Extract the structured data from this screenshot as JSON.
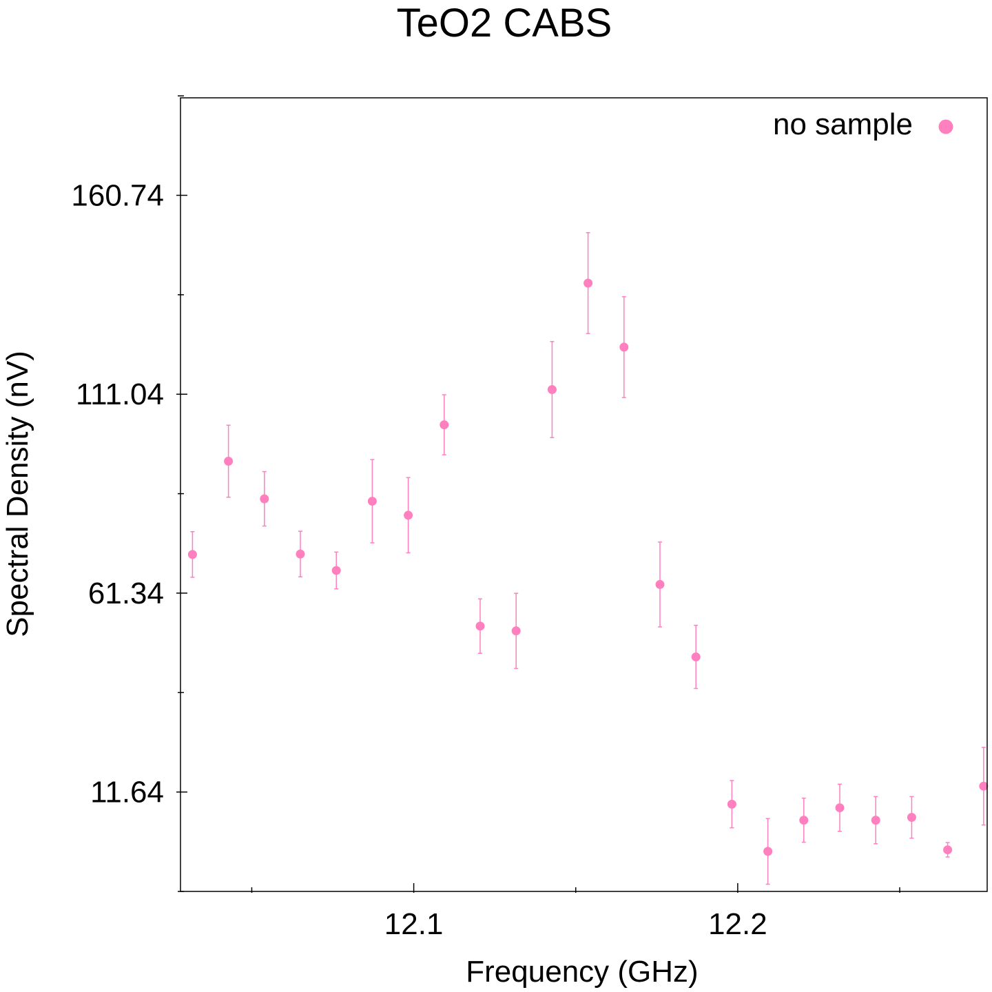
{
  "chart_data": {
    "type": "scatter",
    "title": "TeO2 CABS",
    "xlabel": "Frequency (GHz)",
    "ylabel": "Spectral Density (nV)",
    "xlim": [
      12.028,
      12.277
    ],
    "ylim": [
      -13.2,
      185.1
    ],
    "x_major_ticks": [
      12.1,
      12.2
    ],
    "x_minor_ticks": [
      12.05,
      12.15,
      12.25
    ],
    "x_tick_labels": [
      "12.1",
      "12.2"
    ],
    "y_major_ticks": [
      11.64,
      61.34,
      111.04,
      160.74
    ],
    "y_minor_ticks": [
      -13.21,
      36.49,
      86.19,
      135.89,
      185.59
    ],
    "y_tick_labels": [
      "11.64",
      "61.34",
      "111.04",
      "160.74"
    ],
    "grid": false,
    "legend_position": "top-right",
    "series": [
      {
        "name": "no sample",
        "color": "#ff7fbf",
        "points": [
          {
            "x": 12.0317,
            "y": 71.0,
            "err": 5.7
          },
          {
            "x": 12.0428,
            "y": 94.3,
            "err": 9.0
          },
          {
            "x": 12.0539,
            "y": 84.9,
            "err": 6.8
          },
          {
            "x": 12.065,
            "y": 71.1,
            "err": 5.7
          },
          {
            "x": 12.0761,
            "y": 67.0,
            "err": 4.6
          },
          {
            "x": 12.0872,
            "y": 84.3,
            "err": 10.4
          },
          {
            "x": 12.0983,
            "y": 80.8,
            "err": 9.4
          },
          {
            "x": 12.1094,
            "y": 103.4,
            "err": 7.5
          },
          {
            "x": 12.1205,
            "y": 53.1,
            "err": 6.8
          },
          {
            "x": 12.1316,
            "y": 51.9,
            "err": 9.4
          },
          {
            "x": 12.1427,
            "y": 112.2,
            "err": 12.0
          },
          {
            "x": 12.1538,
            "y": 138.8,
            "err": 12.6
          },
          {
            "x": 12.1649,
            "y": 122.8,
            "err": 12.6
          },
          {
            "x": 12.176,
            "y": 63.5,
            "err": 10.6
          },
          {
            "x": 12.1871,
            "y": 45.4,
            "err": 7.9
          },
          {
            "x": 12.1982,
            "y": 8.6,
            "err": 5.9
          },
          {
            "x": 12.2093,
            "y": -3.2,
            "err": 8.2
          },
          {
            "x": 12.2204,
            "y": 4.6,
            "err": 5.5
          },
          {
            "x": 12.2315,
            "y": 7.7,
            "err": 5.9
          },
          {
            "x": 12.2426,
            "y": 4.6,
            "err": 5.9
          },
          {
            "x": 12.2537,
            "y": 5.3,
            "err": 5.2
          },
          {
            "x": 12.2648,
            "y": -2.8,
            "err": 1.8
          },
          {
            "x": 12.2759,
            "y": 13.1,
            "err": 9.7
          }
        ]
      }
    ]
  }
}
